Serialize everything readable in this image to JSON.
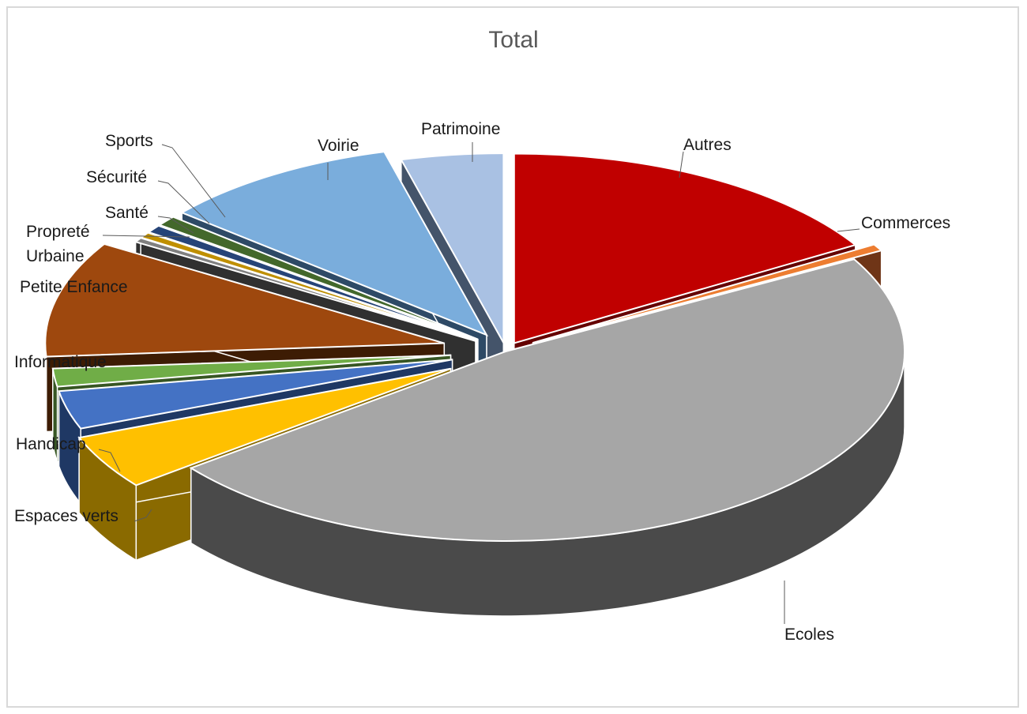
{
  "chart_data": {
    "type": "pie",
    "title": "Total",
    "exploded": true,
    "three_d": true,
    "legend": "none",
    "slices": [
      {
        "label": "Autres",
        "value": 17.0,
        "color": "#c00000",
        "side": "#650000"
      },
      {
        "label": "Commerces",
        "value": 0.6,
        "color": "#ed7d31",
        "side": "#6f3517"
      },
      {
        "label": "Ecoles",
        "value": 49.5,
        "color": "#a6a6a6",
        "side": "#4a4a4a"
      },
      {
        "label": "Espaces verts",
        "value": 4.8,
        "color": "#ffc000",
        "side": "#8a6a00"
      },
      {
        "label": "Handicap",
        "value": 3.4,
        "color": "#4472c4",
        "side": "#1f3864"
      },
      {
        "label": "Informatique",
        "value": 1.6,
        "color": "#70ad47",
        "side": "#375623"
      },
      {
        "label": "Petite Enfance",
        "value": 10.3,
        "color": "#9e480e",
        "side": "#3d1c04"
      },
      {
        "label": "Propreté Urbaine",
        "value": 0.4,
        "color": "#808080",
        "side": "#303030"
      },
      {
        "label": "Santé",
        "value": 0.5,
        "color": "#bf8f00",
        "side": "#5c4500"
      },
      {
        "label": "Sécurité",
        "value": 0.7,
        "color": "#264478",
        "side": "#101d33"
      },
      {
        "label": "Sports",
        "value": 0.9,
        "color": "#43682b",
        "side": "#1d2e12"
      },
      {
        "label": "Voirie",
        "value": 10.1,
        "color": "#7aaddc",
        "side": "#2e4a66"
      },
      {
        "label": "Patrimoine",
        "value": 4.3,
        "color": "#a9c1e3",
        "side": "#44546a"
      }
    ]
  }
}
